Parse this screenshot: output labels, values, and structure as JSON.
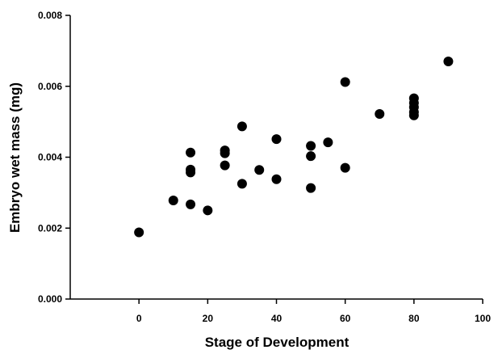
{
  "chart_data": {
    "type": "scatter",
    "title": "",
    "xlabel": "Stage of Development",
    "ylabel": "Embryo wet mass (mg)",
    "xlim": [
      -20,
      100
    ],
    "ylim": [
      0,
      0.008
    ],
    "xticks": [
      0,
      20,
      40,
      60,
      80,
      100
    ],
    "xtick_labels": [
      "0",
      "20",
      "40",
      "60",
      "80",
      "100"
    ],
    "yticks": [
      0.0,
      0.002,
      0.004,
      0.006,
      0.008
    ],
    "ytick_labels": [
      "0.000",
      "0.002",
      "0.004",
      "0.006",
      "0.008"
    ],
    "grid": false,
    "legend": "none",
    "marker_color": "#000000",
    "series": [
      {
        "points": [
          {
            "x": 0,
            "y": 0.00188
          },
          {
            "x": 10,
            "y": 0.00278
          },
          {
            "x": 15,
            "y": 0.00413
          },
          {
            "x": 15,
            "y": 0.00365
          },
          {
            "x": 15,
            "y": 0.00357
          },
          {
            "x": 15,
            "y": 0.00267
          },
          {
            "x": 20,
            "y": 0.0025
          },
          {
            "x": 25,
            "y": 0.00419
          },
          {
            "x": 25,
            "y": 0.00411
          },
          {
            "x": 25,
            "y": 0.00377
          },
          {
            "x": 30,
            "y": 0.00487
          },
          {
            "x": 30,
            "y": 0.00325
          },
          {
            "x": 35,
            "y": 0.00364
          },
          {
            "x": 40,
            "y": 0.00451
          },
          {
            "x": 40,
            "y": 0.00338
          },
          {
            "x": 50,
            "y": 0.00432
          },
          {
            "x": 50,
            "y": 0.00403
          },
          {
            "x": 50,
            "y": 0.00313
          },
          {
            "x": 55,
            "y": 0.00442
          },
          {
            "x": 60,
            "y": 0.00612
          },
          {
            "x": 60,
            "y": 0.0037
          },
          {
            "x": 70,
            "y": 0.00522
          },
          {
            "x": 80,
            "y": 0.00566
          },
          {
            "x": 80,
            "y": 0.00553
          },
          {
            "x": 80,
            "y": 0.00541
          },
          {
            "x": 80,
            "y": 0.00527
          },
          {
            "x": 80,
            "y": 0.00518
          },
          {
            "x": 90,
            "y": 0.0067
          }
        ]
      }
    ]
  }
}
